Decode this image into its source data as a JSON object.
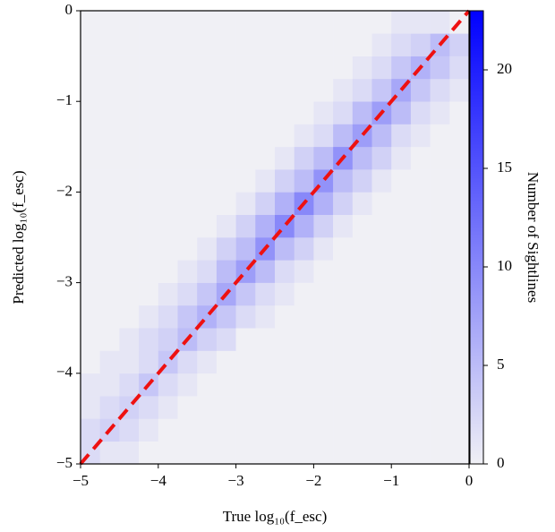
{
  "chart_data": {
    "type": "hist2d",
    "xlabel": "True log₁₀(f_esc)",
    "ylabel": "Predicted log₁₀(f_esc)",
    "colorbar_label": "Number of Sightlines",
    "xlim": [
      -5,
      0
    ],
    "ylim": [
      -5,
      0
    ],
    "xticks": [
      {
        "value": -5,
        "label": "−5"
      },
      {
        "value": -4,
        "label": "−4"
      },
      {
        "value": -3,
        "label": "−3"
      },
      {
        "value": -2,
        "label": "−2"
      },
      {
        "value": -1,
        "label": "−1"
      },
      0
    ],
    "yticks": [
      {
        "value": -5,
        "label": "−5"
      },
      {
        "value": -4,
        "label": "−4"
      },
      {
        "value": -3,
        "label": "−3"
      },
      {
        "value": -2,
        "label": "−2"
      },
      {
        "value": -1,
        "label": "−1"
      },
      0
    ],
    "clim": [
      0,
      23
    ],
    "cticks": [
      0,
      5,
      10,
      15,
      20
    ],
    "cmap": [
      "#f0f0f5",
      "#0000ff"
    ],
    "xbins": [
      -5,
      -4.75,
      -4.5,
      -4.25,
      -4,
      -3.75,
      -3.5,
      -3.25,
      -3,
      -2.75,
      -2.5,
      -2.25,
      -2,
      -1.75,
      -1.5,
      -1.25,
      -1,
      -0.75,
      -0.5,
      -0.25,
      0
    ],
    "ybins": [
      -5,
      -4.75,
      -4.5,
      -4.25,
      -4,
      -3.75,
      -3.5,
      -3.25,
      -3,
      -2.75,
      -2.5,
      -2.25,
      -2,
      -1.75,
      -1.5,
      -1.25,
      -1,
      -0.75,
      -0.5,
      -0.25,
      0
    ],
    "z": [
      [
        2,
        1,
        1,
        0,
        0,
        0,
        0,
        0,
        0,
        0,
        0,
        0,
        0,
        0,
        0,
        0,
        0,
        0,
        0,
        0
      ],
      [
        2,
        3,
        2,
        1,
        0,
        0,
        0,
        0,
        0,
        0,
        0,
        0,
        0,
        0,
        0,
        0,
        0,
        0,
        0,
        0
      ],
      [
        1,
        2,
        3,
        2,
        1,
        0,
        0,
        0,
        0,
        0,
        0,
        0,
        0,
        0,
        0,
        0,
        0,
        0,
        0,
        0
      ],
      [
        1,
        1,
        2,
        4,
        2,
        1,
        0,
        0,
        0,
        0,
        0,
        0,
        0,
        0,
        0,
        0,
        0,
        0,
        0,
        0
      ],
      [
        0,
        1,
        1,
        2,
        4,
        2,
        1,
        0,
        0,
        0,
        0,
        0,
        0,
        0,
        0,
        0,
        0,
        0,
        0,
        0
      ],
      [
        0,
        0,
        1,
        2,
        3,
        5,
        3,
        2,
        0,
        0,
        0,
        0,
        0,
        0,
        0,
        0,
        0,
        0,
        0,
        0
      ],
      [
        0,
        0,
        0,
        1,
        2,
        4,
        6,
        4,
        2,
        1,
        0,
        0,
        0,
        0,
        0,
        0,
        0,
        0,
        0,
        0
      ],
      [
        0,
        0,
        0,
        0,
        1,
        2,
        4,
        7,
        4,
        2,
        1,
        0,
        0,
        0,
        0,
        0,
        0,
        0,
        0,
        0
      ],
      [
        0,
        0,
        0,
        0,
        0,
        1,
        2,
        5,
        8,
        5,
        2,
        1,
        0,
        0,
        0,
        0,
        0,
        0,
        0,
        0
      ],
      [
        0,
        0,
        0,
        0,
        0,
        0,
        1,
        3,
        5,
        9,
        5,
        3,
        1,
        0,
        0,
        0,
        0,
        0,
        0,
        0
      ],
      [
        0,
        0,
        0,
        0,
        0,
        0,
        0,
        1,
        3,
        6,
        10,
        6,
        3,
        1,
        0,
        0,
        0,
        0,
        0,
        0
      ],
      [
        0,
        0,
        0,
        0,
        0,
        0,
        0,
        0,
        1,
        3,
        6,
        10,
        6,
        3,
        1,
        0,
        0,
        0,
        0,
        0
      ],
      [
        0,
        0,
        0,
        0,
        0,
        0,
        0,
        0,
        0,
        1,
        3,
        5,
        9,
        5,
        3,
        1,
        0,
        0,
        0,
        0
      ],
      [
        0,
        0,
        0,
        0,
        0,
        0,
        0,
        0,
        0,
        0,
        1,
        3,
        5,
        9,
        5,
        3,
        1,
        0,
        0,
        0
      ],
      [
        0,
        0,
        0,
        0,
        0,
        0,
        0,
        0,
        0,
        0,
        0,
        1,
        2,
        5,
        8,
        5,
        2,
        1,
        0,
        0
      ],
      [
        0,
        0,
        0,
        0,
        0,
        0,
        0,
        0,
        0,
        0,
        0,
        0,
        1,
        2,
        5,
        8,
        5,
        2,
        1,
        0
      ],
      [
        0,
        0,
        0,
        0,
        0,
        0,
        0,
        0,
        0,
        0,
        0,
        0,
        0,
        1,
        2,
        4,
        7,
        4,
        2,
        1
      ],
      [
        0,
        0,
        0,
        0,
        0,
        0,
        0,
        0,
        0,
        0,
        0,
        0,
        0,
        0,
        1,
        2,
        4,
        6,
        4,
        2
      ],
      [
        0,
        0,
        0,
        0,
        0,
        0,
        0,
        0,
        0,
        0,
        0,
        0,
        0,
        0,
        0,
        1,
        2,
        3,
        5,
        3
      ],
      [
        0,
        0,
        0,
        0,
        0,
        0,
        0,
        0,
        0,
        0,
        0,
        0,
        0,
        0,
        0,
        0,
        1,
        1,
        1,
        0
      ]
    ],
    "reference_line": {
      "x": [
        -5,
        0
      ],
      "y": [
        -5,
        0
      ],
      "color": "#ee1111"
    }
  }
}
